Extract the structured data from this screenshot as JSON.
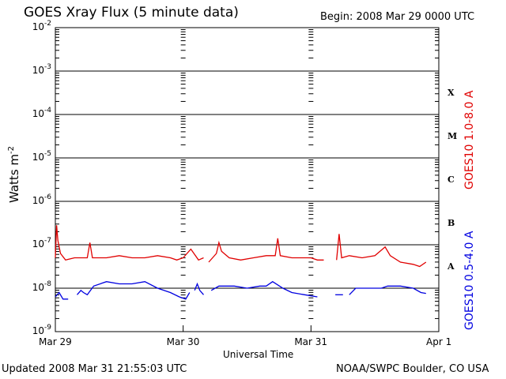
{
  "title": "GOES Xray Flux (5 minute data)",
  "begin": "Begin:  2008 Mar 29 0000 UTC",
  "updated": "Updated 2008 Mar 31 21:55:03 UTC",
  "credit": "NOAA/SWPC Boulder, CO USA",
  "chart_data": {
    "type": "line",
    "xlabel": "Universal Time",
    "ylabel": "Watts m",
    "ylabel_sup": "-2",
    "yscale": "log",
    "ylim_exp": [
      -9,
      -2
    ],
    "xlim_days": [
      0,
      3
    ],
    "x_ticks": [
      {
        "label": "Mar 29",
        "day": 0
      },
      {
        "label": "Mar 30",
        "day": 1
      },
      {
        "label": "Mar 31",
        "day": 2
      },
      {
        "label": "Apr 1",
        "day": 3
      }
    ],
    "y_ticks": [
      {
        "base": "10",
        "exp": "-9"
      },
      {
        "base": "10",
        "exp": "-8"
      },
      {
        "base": "10",
        "exp": "-7"
      },
      {
        "base": "10",
        "exp": "-6"
      },
      {
        "base": "10",
        "exp": "-5"
      },
      {
        "base": "10",
        "exp": "-4"
      },
      {
        "base": "10",
        "exp": "-3"
      },
      {
        "base": "10",
        "exp": "-2"
      }
    ],
    "flare_classes": [
      {
        "label": "A",
        "exp": -7.5
      },
      {
        "label": "B",
        "exp": -6.5
      },
      {
        "label": "C",
        "exp": -5.5
      },
      {
        "label": "M",
        "exp": -4.5
      },
      {
        "label": "X",
        "exp": -3.5
      }
    ],
    "series": [
      {
        "name": "GOES10 1.0-8.0 A",
        "color": "#e00000",
        "points": [
          [
            0,
            -7.3
          ],
          [
            0.01,
            -6.55
          ],
          [
            0.02,
            -6.9
          ],
          [
            0.04,
            -7.2
          ],
          [
            0.08,
            -7.35
          ],
          [
            0.15,
            -7.3
          ],
          [
            0.25,
            -7.3
          ],
          [
            0.27,
            -6.95
          ],
          [
            0.29,
            -7.3
          ],
          [
            0.4,
            -7.3
          ],
          [
            0.5,
            -7.25
          ],
          [
            0.6,
            -7.3
          ],
          [
            0.7,
            -7.3
          ],
          [
            0.8,
            -7.25
          ],
          [
            0.9,
            -7.3
          ],
          [
            0.95,
            -7.35
          ],
          [
            1.0,
            -7.3
          ],
          [
            1.06,
            -7.1
          ],
          [
            1.12,
            -7.35
          ],
          [
            1.16,
            -7.3
          ],
          null,
          [
            1.2,
            -7.4
          ],
          [
            1.26,
            -7.2
          ],
          [
            1.28,
            -6.95
          ],
          [
            1.3,
            -7.15
          ],
          [
            1.36,
            -7.3
          ],
          [
            1.45,
            -7.35
          ],
          [
            1.55,
            -7.3
          ],
          [
            1.65,
            -7.25
          ],
          [
            1.72,
            -7.25
          ],
          [
            1.74,
            -6.85
          ],
          [
            1.76,
            -7.25
          ],
          [
            1.85,
            -7.3
          ],
          [
            1.95,
            -7.3
          ],
          [
            2.0,
            -7.3
          ],
          [
            2.05,
            -7.35
          ],
          [
            2.1,
            -7.35
          ],
          null,
          [
            2.2,
            -7.35
          ],
          [
            2.22,
            -6.75
          ],
          [
            2.24,
            -7.3
          ],
          [
            2.3,
            -7.25
          ],
          [
            2.4,
            -7.3
          ],
          [
            2.5,
            -7.25
          ],
          [
            2.58,
            -7.05
          ],
          [
            2.62,
            -7.25
          ],
          [
            2.7,
            -7.4
          ],
          [
            2.8,
            -7.45
          ],
          [
            2.85,
            -7.5
          ],
          [
            2.9,
            -7.4
          ]
        ]
      },
      {
        "name": "GOES10 0.5-4.0 A",
        "color": "#0000e0",
        "points": [
          [
            0,
            -8.2
          ],
          [
            0.03,
            -8.1
          ],
          [
            0.06,
            -8.25
          ],
          [
            0.1,
            -8.25
          ],
          null,
          [
            0.17,
            -8.15
          ],
          [
            0.2,
            -8.05
          ],
          [
            0.22,
            -8.1
          ],
          [
            0.25,
            -8.15
          ],
          [
            0.3,
            -7.95
          ],
          [
            0.4,
            -7.85
          ],
          [
            0.5,
            -7.9
          ],
          [
            0.6,
            -7.9
          ],
          [
            0.7,
            -7.85
          ],
          [
            0.8,
            -8.0
          ],
          [
            0.9,
            -8.1
          ],
          [
            0.97,
            -8.2
          ],
          [
            1.02,
            -8.25
          ],
          [
            1.05,
            -8.1
          ],
          null,
          [
            1.09,
            -8.05
          ],
          [
            1.11,
            -7.9
          ],
          [
            1.13,
            -8.05
          ],
          [
            1.16,
            -8.15
          ],
          null,
          [
            1.22,
            -8.05
          ],
          [
            1.28,
            -7.95
          ],
          [
            1.4,
            -7.95
          ],
          [
            1.5,
            -8.0
          ],
          [
            1.6,
            -7.95
          ],
          [
            1.65,
            -7.95
          ],
          [
            1.7,
            -7.85
          ],
          [
            1.78,
            -8.0
          ],
          [
            1.85,
            -8.1
          ],
          [
            1.95,
            -8.15
          ],
          [
            2.05,
            -8.2
          ],
          null,
          [
            2.19,
            -8.15
          ],
          [
            2.25,
            -8.15
          ],
          null,
          [
            2.3,
            -8.15
          ],
          [
            2.35,
            -8.0
          ],
          [
            2.45,
            -8.0
          ],
          [
            2.55,
            -8.0
          ],
          [
            2.6,
            -7.95
          ],
          [
            2.7,
            -7.95
          ],
          [
            2.8,
            -8.0
          ],
          [
            2.86,
            -8.1
          ],
          [
            2.9,
            -8.12
          ]
        ]
      }
    ]
  }
}
